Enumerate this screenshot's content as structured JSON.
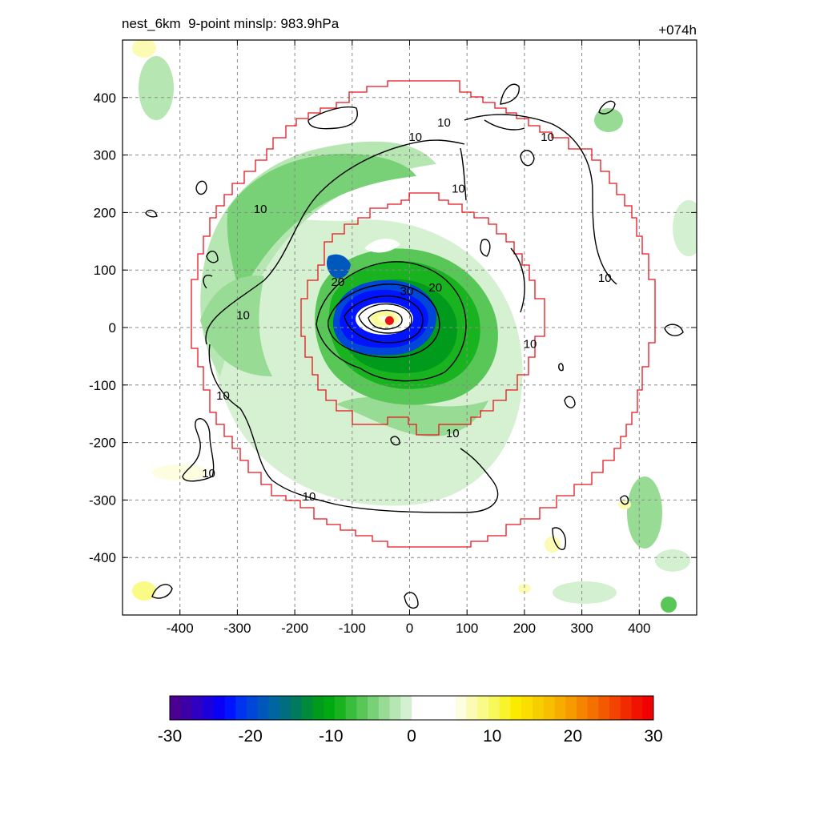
{
  "title_left": "nest_6km  9-point minslp: 983.9hPa",
  "title_right": "+074h",
  "chart_data": {
    "type": "contour map",
    "xlim": [
      -500,
      500
    ],
    "ylim": [
      -500,
      500
    ],
    "x_ticks": [
      -400,
      -300,
      -200,
      -100,
      0,
      100,
      200,
      300,
      400
    ],
    "y_ticks": [
      400,
      300,
      200,
      100,
      0,
      -100,
      -200,
      -300,
      -400
    ],
    "x_tick_labels": [
      "-400",
      "-300",
      "-200",
      "-100",
      "0",
      "100",
      "200",
      "300",
      "400"
    ],
    "y_tick_labels": [
      "400",
      "300",
      "200",
      "100",
      "0",
      "-100",
      "-200",
      "-300",
      "-400"
    ],
    "grid": true,
    "center_marker": {
      "x": -35,
      "y": 12,
      "color": "#e8141b"
    },
    "contour_line_labels": [
      {
        "text": "10",
        "x": -260,
        "y": 205
      },
      {
        "text": "10",
        "x": 10,
        "y": 330
      },
      {
        "text": "10",
        "x": 60,
        "y": 355
      },
      {
        "text": "10",
        "x": 240,
        "y": 330
      },
      {
        "text": "10",
        "x": 85,
        "y": 240
      },
      {
        "text": "10",
        "x": -290,
        "y": 20
      },
      {
        "text": "10",
        "x": -325,
        "y": -120
      },
      {
        "text": "10",
        "x": -350,
        "y": -255
      },
      {
        "text": "10",
        "x": -175,
        "y": -295
      },
      {
        "text": "10",
        "x": 75,
        "y": -185
      },
      {
        "text": "10",
        "x": 340,
        "y": 85
      },
      {
        "text": "10",
        "x": 210,
        "y": -30
      },
      {
        "text": "20",
        "x": -125,
        "y": 78
      },
      {
        "text": "20",
        "x": 45,
        "y": 68
      },
      {
        "text": "30",
        "x": -5,
        "y": 62
      }
    ],
    "colorbar": {
      "ticks": [
        -30,
        -20,
        -10,
        0,
        10,
        20,
        30
      ],
      "tick_labels": [
        "-30",
        "-20",
        "-10",
        "0",
        "10",
        "20",
        "30"
      ],
      "colors": [
        "#4b0091",
        "#3d00a6",
        "#2d00c2",
        "#1c00db",
        "#0a00f5",
        "#0014ff",
        "#0033f0",
        "#0046d8",
        "#0058bd",
        "#0066a0",
        "#006e7f",
        "#007a5d",
        "#008a3a",
        "#009a1c",
        "#00a812",
        "#18b31e",
        "#38bd3c",
        "#58c758",
        "#78d176",
        "#98db94",
        "#b6e6b2",
        "#d3f0d0",
        "#ffffff",
        "#ffffff",
        "#ffffff",
        "#ffffff",
        "#fdfde0",
        "#fbfbb4",
        "#fafa86",
        "#f8f85a",
        "#f9f32c",
        "#fbeb00",
        "#f9de00",
        "#f7cf00",
        "#f7bf00",
        "#f7ad00",
        "#f79a00",
        "#f58500",
        "#f47000",
        "#f35a00",
        "#f24300",
        "#f12a00",
        "#f01400",
        "#f00000"
      ]
    },
    "outline_color": "#e8141b"
  }
}
